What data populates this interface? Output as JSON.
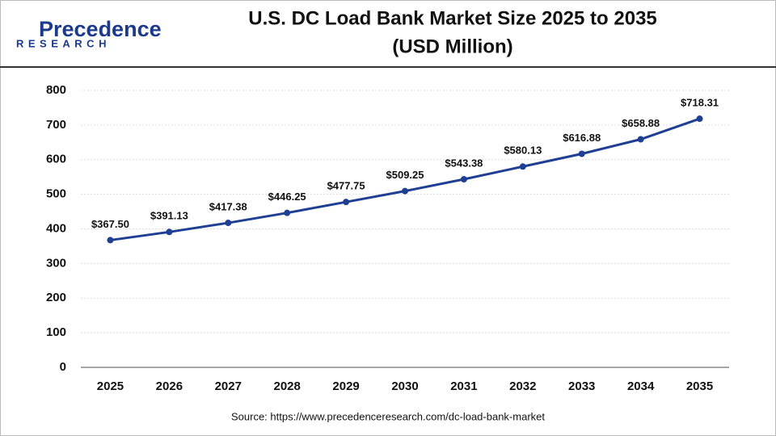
{
  "logo": {
    "name": "Precedence",
    "tagline": "RESEARCH"
  },
  "chart_data": {
    "type": "line",
    "title": "U.S. DC Load Bank Market Size 2025 to 2035",
    "subtitle": "(USD Million)",
    "categories": [
      "2025",
      "2026",
      "2027",
      "2028",
      "2029",
      "2030",
      "2031",
      "2032",
      "2033",
      "2034",
      "2035"
    ],
    "values": [
      367.5,
      391.13,
      417.38,
      446.25,
      477.75,
      509.25,
      543.38,
      580.13,
      616.88,
      658.88,
      718.31
    ],
    "value_labels": [
      "$367.50",
      "$391.13",
      "$417.38",
      "$446.25",
      "$477.75",
      "$509.25",
      "$543.38",
      "$580.13",
      "$616.88",
      "$658.88",
      "$718.31"
    ],
    "color": "#1f3f93",
    "ylim": [
      0,
      800
    ],
    "yticks": [
      0,
      100,
      200,
      300,
      400,
      500,
      600,
      700,
      800
    ],
    "grid": true,
    "source": "Source: https://www.precedenceresearch.com/dc-load-bank-market"
  }
}
